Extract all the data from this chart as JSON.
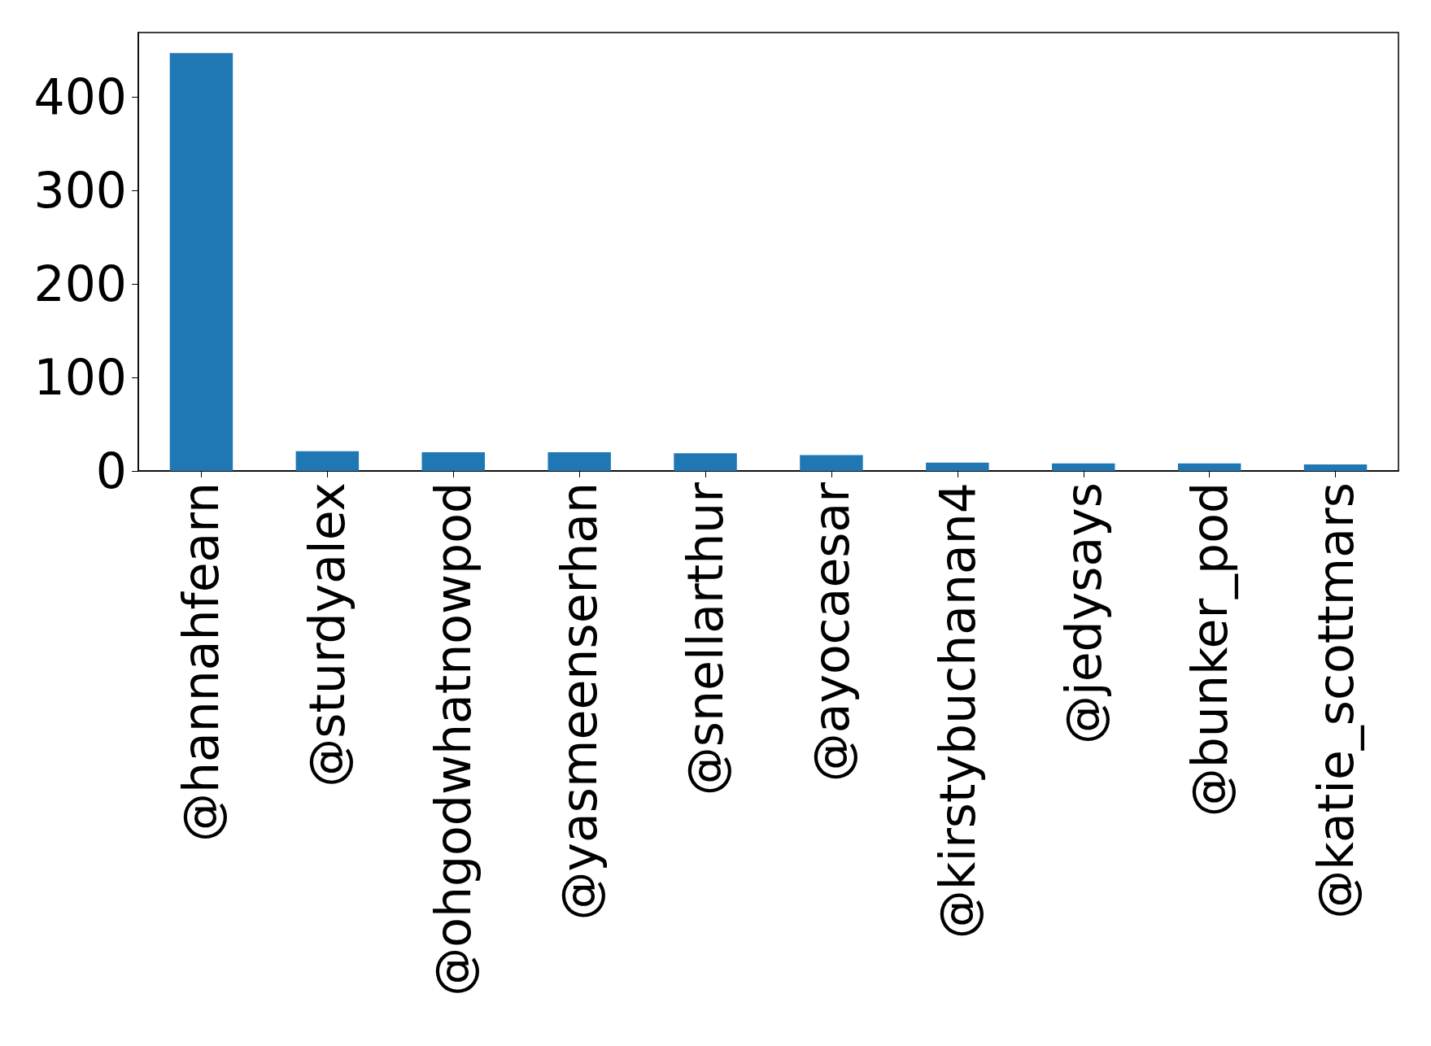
{
  "chart_data": {
    "type": "bar",
    "categories": [
      "@hannahfearn",
      "@sturdyalex",
      "@ohgodwhatnowpod",
      "@yasmeenserhan",
      "@snellarthur",
      "@ayocaesar",
      "@kirstybuchanan4",
      "@jedysays",
      "@bunker_pod",
      "@katie_scottmars"
    ],
    "values": [
      447,
      21,
      20,
      20,
      19,
      17,
      9,
      8,
      8,
      7
    ],
    "color": "#1f77b4",
    "ylim": [
      0,
      469
    ],
    "yticks": [
      0,
      100,
      200,
      300,
      400
    ],
    "grid": false
  }
}
